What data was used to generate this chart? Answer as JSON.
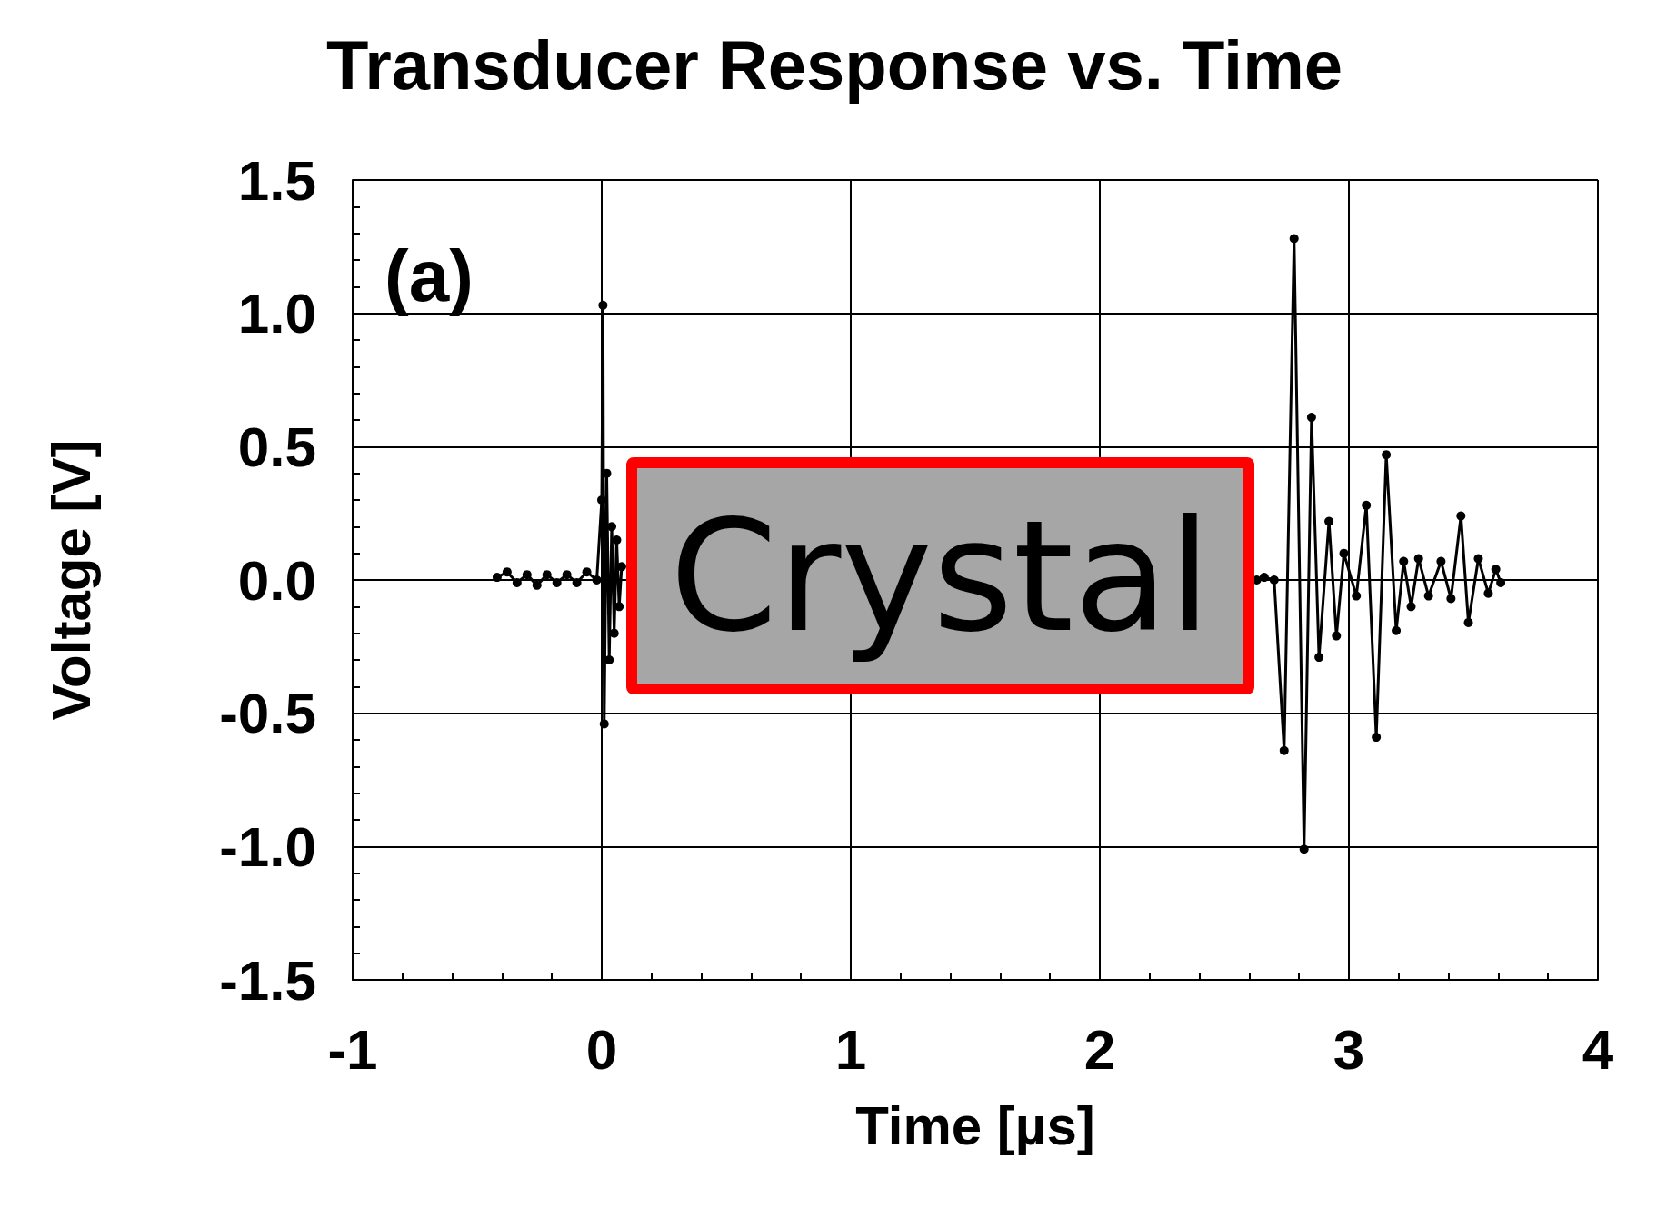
{
  "chart_data": {
    "type": "line",
    "title": "Transducer Response vs. Time",
    "xlabel": "Time [µs]",
    "ylabel": "Voltage [V]",
    "annotations": [
      "(a)",
      "Crystal"
    ],
    "xlim": [
      -1,
      4
    ],
    "xticks": [
      -1,
      0,
      1,
      2,
      3,
      4
    ],
    "ylim": [
      -1.5,
      1.5
    ],
    "yticks": [
      {
        "value": -1.5,
        "label": "-1.5"
      },
      {
        "value": -1,
        "label": "-1.0"
      },
      -0.5,
      {
        "value": 0,
        "label": "0.0"
      },
      0.5,
      {
        "value": 1,
        "label": "1.0"
      },
      1.5
    ],
    "grid": true,
    "marker": "circle",
    "line_style": "solid",
    "series": [
      {
        "color": "#000000",
        "x": [
          -0.42,
          -0.38,
          -0.34,
          -0.3,
          -0.26,
          -0.22,
          -0.18,
          -0.14,
          -0.1,
          -0.06,
          -0.02,
          0,
          0.005,
          0.01,
          0.02,
          0.03,
          0.04,
          0.05,
          0.06,
          0.07,
          0.08,
          0.09,
          2.63,
          2.66,
          2.7,
          2.74,
          2.78,
          2.82,
          2.85,
          2.88,
          2.92,
          2.95,
          2.98,
          3.03,
          3.07,
          3.11,
          3.15,
          3.19,
          3.22,
          3.25,
          3.28,
          3.32,
          3.37,
          3.41,
          3.45,
          3.48,
          3.52,
          3.56,
          3.59,
          3.61
        ],
        "values": [
          0.01,
          0.03,
          -0.01,
          0.02,
          -0.02,
          0.02,
          -0.01,
          0.02,
          -0.01,
          0.03,
          0.0,
          0.3,
          1.03,
          -0.54,
          0.4,
          -0.3,
          0.2,
          -0.2,
          0.15,
          -0.1,
          0.05,
          null,
          0.0,
          0.01,
          0.0,
          -0.64,
          1.28,
          -1.01,
          0.61,
          -0.29,
          0.22,
          -0.21,
          0.1,
          -0.06,
          0.28,
          -0.59,
          0.47,
          -0.19,
          0.07,
          -0.1,
          0.08,
          -0.06,
          0.07,
          -0.07,
          0.24,
          -0.16,
          0.08,
          -0.05,
          0.04,
          -0.01
        ]
      }
    ]
  }
}
